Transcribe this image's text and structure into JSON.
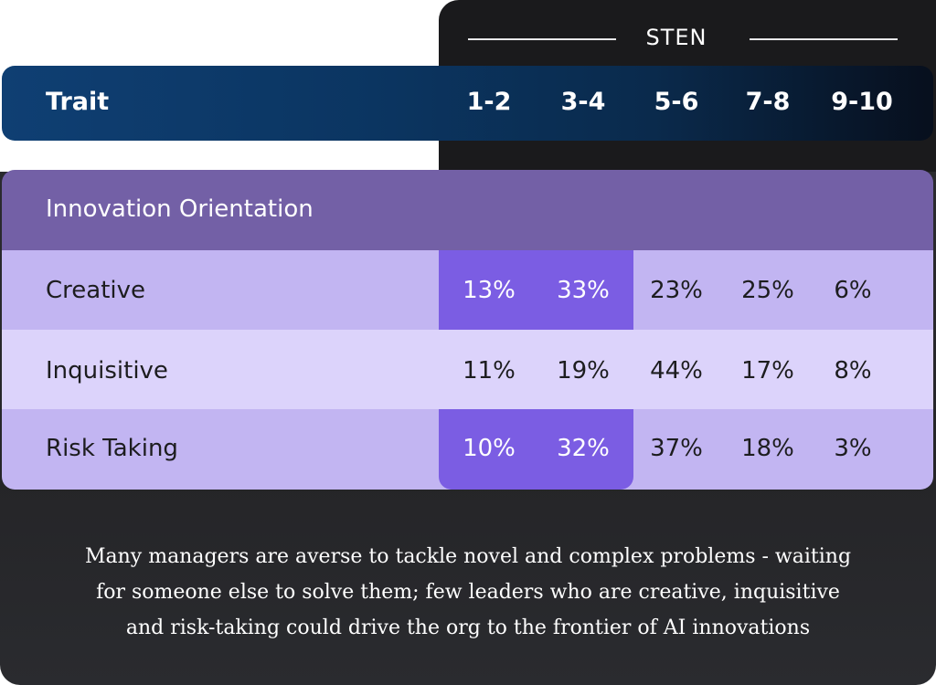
{
  "chart_data": {
    "type": "table",
    "group_label": "STEN",
    "header": {
      "trait": "Trait",
      "columns": [
        "1-2",
        "3-4",
        "5-6",
        "7-8",
        "9-10"
      ]
    },
    "section_title": "Innovation Orientation",
    "rows": [
      {
        "trait": "Creative",
        "values": [
          "13%",
          "33%",
          "23%",
          "25%",
          "6%"
        ],
        "highlight_columns": [
          0,
          1
        ]
      },
      {
        "trait": "Inquisitive",
        "values": [
          "11%",
          "19%",
          "44%",
          "17%",
          "8%"
        ],
        "highlight_columns": []
      },
      {
        "trait": "Risk Taking",
        "values": [
          "10%",
          "32%",
          "37%",
          "18%",
          "3%"
        ],
        "highlight_columns": [
          0,
          1
        ]
      }
    ],
    "caption": [
      "Many managers are averse to tackle novel and complex problems - waiting",
      "for someone else to solve them; few leaders who are creative, inquisitive",
      "and risk-taking could drive the org to the frontier of AI innovations"
    ]
  },
  "colors": {
    "header_bar": "#0b3561",
    "section_row": "#7360a6",
    "row_dark": "#c2b5f2",
    "row_light": "#dcd3fb",
    "highlight": "#7b5de3",
    "background": "#26262a"
  }
}
